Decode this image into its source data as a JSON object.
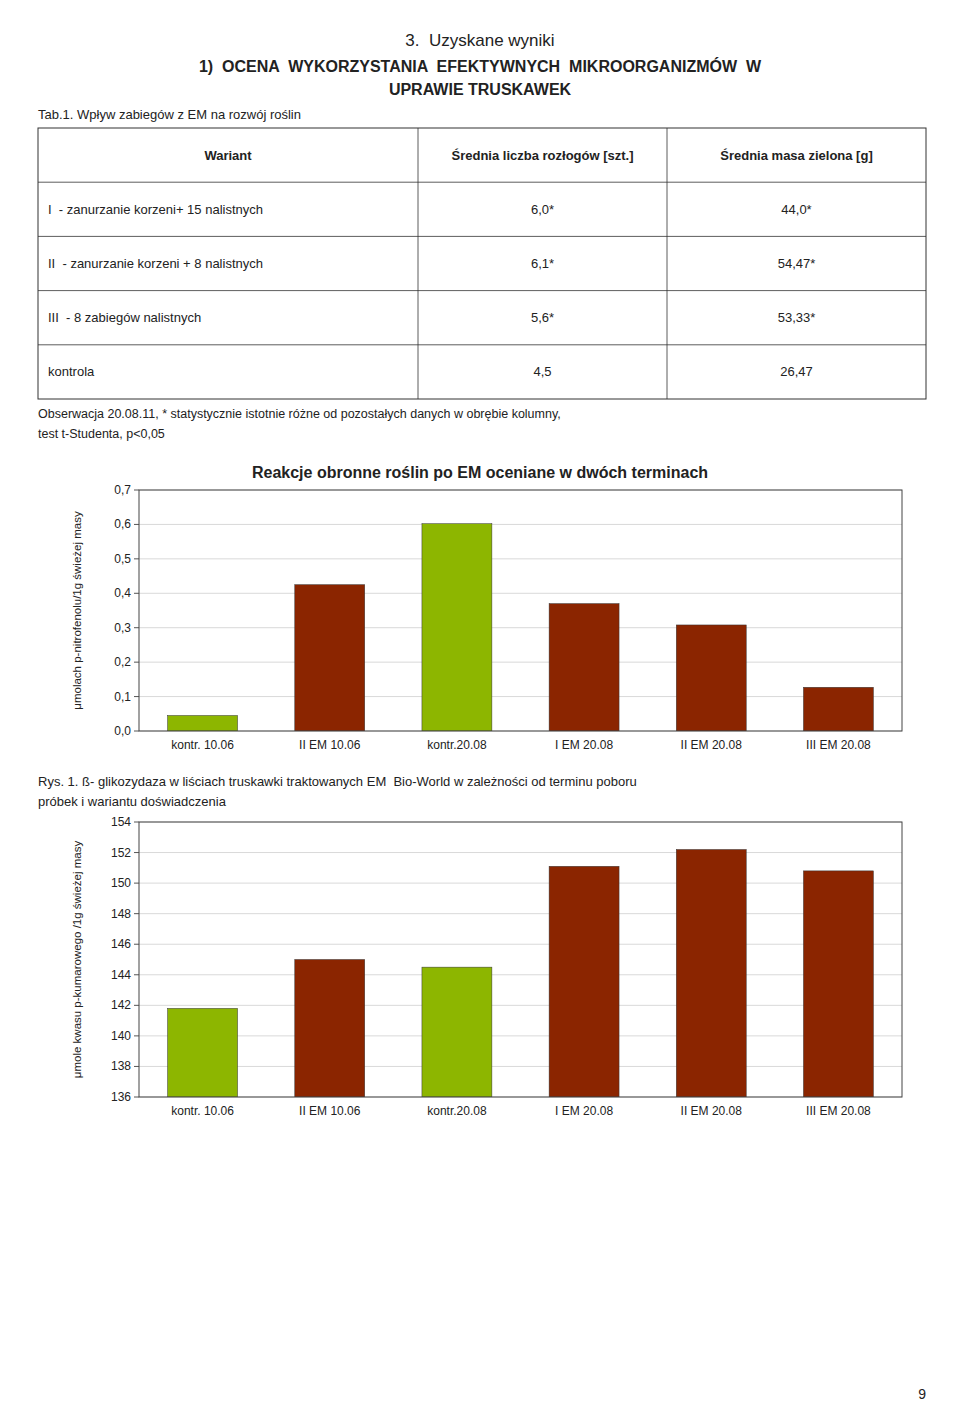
{
  "section_title": "3.  Uzyskane wyniki",
  "heading": [
    "1)  OCENA  WYKORZYSTANIA  EFEKTYWNYCH  MIKROORGANIZMÓW  W",
    "UPRAWIE TRUSKAWEK"
  ],
  "table": {
    "caption": "Tab.1. Wpływ zabiegów z EM na rozwój roślin",
    "headers": [
      "Wariant",
      "Średnia liczba rozłogów [szt.]",
      "Średnia masa zielona [g]"
    ],
    "rows": [
      [
        "I  - zanurzanie korzeni+ 15 nalistnych",
        "6,0*",
        "44,0*"
      ],
      [
        "II  - zanurzanie korzeni + 8 nalistnych",
        "6,1*",
        "54,47*"
      ],
      [
        "III  - 8 zabiegów nalistnych",
        "5,6*",
        "53,33*"
      ],
      [
        "kontrola",
        "4,5",
        "26,47"
      ]
    ]
  },
  "notes": [
    "Obserwacja 20.08.11, * statystycznie istotnie różne od pozostałych danych w obrębie kolumny,",
    "test t-Studenta, p<0,05"
  ],
  "chart_data": [
    {
      "type": "bar",
      "title": "Reakcje obronne roślin po EM oceniane w dwóch terminach",
      "y_label": "μmolach p-nitrofenolu/1g świeżej masy",
      "categories": [
        "kontr. 10.06",
        "II EM 10.06",
        "kontr.20.08",
        "I EM 20.08",
        "II EM 20.08",
        "III EM 20.08"
      ],
      "values": [
        0.045,
        0.425,
        0.602,
        0.37,
        0.308,
        0.127
      ],
      "colors": [
        "#8db600",
        "#8b2500",
        "#8db600",
        "#8b2500",
        "#8b2500",
        "#8b2500"
      ],
      "ylim": [
        0,
        0.7
      ],
      "yticks": [
        {
          "value": 0,
          "label": "0,0"
        },
        {
          "value": 0.1,
          "label": "0,1"
        },
        {
          "value": 0.2,
          "label": "0,2"
        },
        {
          "value": 0.3,
          "label": "0,3"
        },
        {
          "value": 0.4,
          "label": "0,4"
        },
        {
          "value": 0.5,
          "label": "0,5"
        },
        {
          "value": 0.6,
          "label": "0,6"
        },
        {
          "value": 0.7,
          "label": "0,7"
        }
      ],
      "grid": true
    },
    {
      "type": "bar",
      "title": "Rys. 1. ß- glikozydaza w liściach truskawki traktowanych EM  Bio-World w zależności od terminu poboru",
      "subtitle": "próbek i wariantu doświadczenia",
      "y_label": "μmole kwasu p-kumarowego /1g świeżej masy",
      "categories": [
        "kontr. 10.06",
        "II EM 10.06",
        "kontr.20.08",
        "I EM 20.08",
        "II EM 20.08",
        "III EM 20.08"
      ],
      "values": [
        141.8,
        145.0,
        144.5,
        151.1,
        152.2,
        150.8
      ],
      "colors": [
        "#8db600",
        "#8b2500",
        "#8db600",
        "#8b2500",
        "#8b2500",
        "#8b2500"
      ],
      "ylim": [
        136,
        154
      ],
      "yticks": [
        136,
        138,
        140,
        142,
        144,
        146,
        148,
        150,
        152,
        154
      ],
      "grid": true
    }
  ],
  "page_number": "9"
}
